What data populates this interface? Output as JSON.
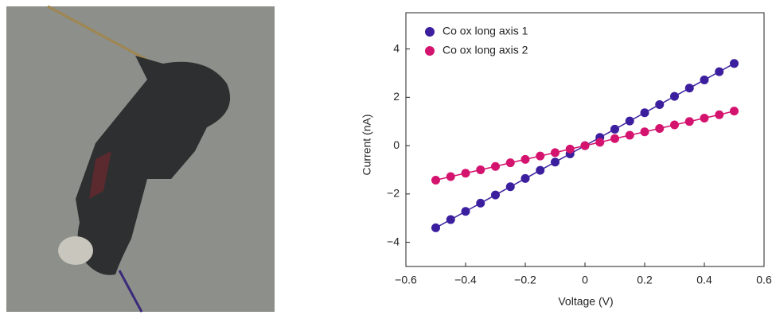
{
  "chart_data": {
    "type": "scatter",
    "x": [
      -0.5,
      -0.45,
      -0.4,
      -0.35,
      -0.3,
      -0.25,
      -0.2,
      -0.15,
      -0.1,
      -0.05,
      0,
      0.05,
      0.1,
      0.15,
      0.2,
      0.25,
      0.3,
      0.35,
      0.4,
      0.45,
      0.5
    ],
    "series": [
      {
        "name": "Co ox long axis 1",
        "color": "#3b1f9e",
        "values": [
          -3.4,
          -3.06,
          -2.72,
          -2.38,
          -2.04,
          -1.7,
          -1.36,
          -1.02,
          -0.68,
          -0.34,
          0,
          0.34,
          0.68,
          1.02,
          1.36,
          1.7,
          2.04,
          2.38,
          2.72,
          3.06,
          3.4
        ]
      },
      {
        "name": "Co ox long axis 2",
        "color": "#d4136e",
        "values": [
          -1.43,
          -1.28,
          -1.14,
          -1.0,
          -0.86,
          -0.71,
          -0.57,
          -0.43,
          -0.29,
          -0.14,
          0,
          0.14,
          0.29,
          0.43,
          0.57,
          0.71,
          0.86,
          1.0,
          1.14,
          1.28,
          1.43
        ]
      }
    ],
    "x_label": "Voltage (V)",
    "y_label": "Current (nA)",
    "xlim": [
      -0.6,
      0.6
    ],
    "xticks": [
      {
        "value": -0.6,
        "label": "−0.6"
      },
      {
        "value": -0.4,
        "label": "−0.4"
      },
      {
        "value": -0.2,
        "label": "−0.2"
      },
      0,
      0.2,
      0.4,
      0.6
    ],
    "ylim": [
      -5,
      5.5
    ],
    "yticks": [
      {
        "value": -4,
        "label": "−4"
      },
      {
        "value": -2,
        "label": "−2"
      },
      0,
      2,
      4
    ],
    "legend": "upper left",
    "fit_lines": true
  }
}
